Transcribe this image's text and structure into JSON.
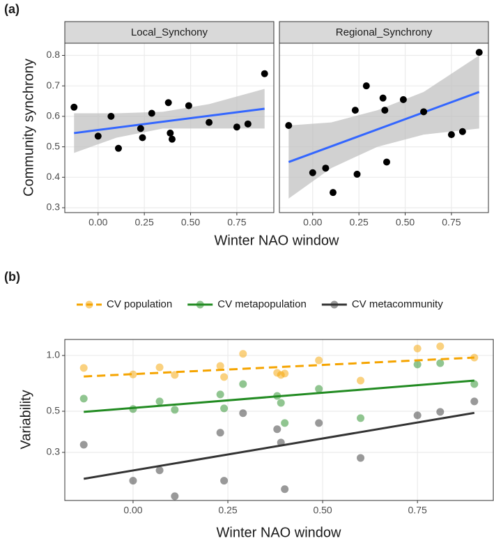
{
  "chart_data": [
    {
      "type": "scatter",
      "label": "(a)",
      "y_label": "Community synchrony",
      "x_label": "Winter NAO window",
      "xlim": [
        -0.18,
        0.95
      ],
      "xticks": [
        {
          "value": 0,
          "label": "0.00"
        },
        {
          "value": 0.25,
          "label": "0.25"
        },
        {
          "value": 0.5,
          "label": "0.50"
        },
        {
          "value": 0.75,
          "label": "0.75"
        }
      ],
      "ylim": [
        0.284,
        0.84
      ],
      "yticks": [
        0.3,
        0.4,
        0.5,
        0.6,
        0.7,
        0.8
      ],
      "grid": true,
      "point_color": "#000000",
      "fit_color": "#3366ff",
      "ribbon_color": "#bebebe",
      "x": [
        -0.13,
        0.0,
        0.07,
        0.11,
        0.23,
        0.24,
        0.29,
        0.38,
        0.39,
        0.4,
        0.49,
        0.6,
        0.75,
        0.81,
        0.9
      ],
      "facets": [
        {
          "title": "Local_Synchony",
          "values": [
            0.63,
            0.535,
            0.6,
            0.495,
            0.56,
            0.53,
            0.61,
            0.645,
            0.545,
            0.525,
            0.635,
            0.58,
            0.565,
            0.575,
            0.74
          ],
          "fit": {
            "x": [
              -0.13,
              0.9
            ],
            "y": [
              0.545,
              0.625
            ]
          },
          "ribbon": {
            "x": [
              -0.13,
              0.1,
              0.35,
              0.6,
              0.9
            ],
            "lower": [
              0.48,
              0.53,
              0.56,
              0.56,
              0.56
            ],
            "upper": [
              0.61,
              0.61,
              0.615,
              0.64,
              0.69
            ]
          }
        },
        {
          "title": "Regional_Synchrony",
          "values": [
            0.57,
            0.415,
            0.43,
            0.35,
            0.62,
            0.41,
            0.7,
            0.66,
            0.62,
            0.45,
            0.655,
            0.615,
            0.54,
            0.55,
            0.81
          ],
          "fit": {
            "x": [
              -0.13,
              0.9
            ],
            "y": [
              0.45,
              0.68
            ]
          },
          "ribbon": {
            "x": [
              -0.13,
              0.1,
              0.35,
              0.6,
              0.9
            ],
            "lower": [
              0.33,
              0.43,
              0.5,
              0.54,
              0.56
            ],
            "upper": [
              0.57,
              0.58,
              0.62,
              0.68,
              0.8
            ]
          }
        }
      ]
    },
    {
      "type": "scatter",
      "label": "(b)",
      "y_label": "Variability",
      "x_label": "Winter NAO window",
      "log_y": true,
      "legend": "top",
      "grid": true,
      "xlim": [
        -0.18,
        0.95
      ],
      "xticks": [
        {
          "value": 0,
          "label": "0.00"
        },
        {
          "value": 0.25,
          "label": "0.25"
        },
        {
          "value": 0.5,
          "label": "0.50"
        },
        {
          "value": 0.75,
          "label": "0.75"
        }
      ],
      "ylim": [
        0.165,
        1.22
      ],
      "yticks": [
        0.3,
        0.5,
        {
          "value": 1,
          "label": "1.0"
        }
      ],
      "x": [
        -0.13,
        0.0,
        0.07,
        0.11,
        0.23,
        0.24,
        0.29,
        0.38,
        0.39,
        0.4,
        0.49,
        0.6,
        0.75,
        0.81,
        0.9
      ],
      "series": [
        {
          "name": "CV population",
          "color": "#f5a400",
          "dash": true,
          "values": [
            0.856,
            0.79,
            0.863,
            0.785,
            0.878,
            0.765,
            1.02,
            0.806,
            0.785,
            0.799,
            0.941,
            0.732,
            1.09,
            1.12,
            0.974
          ],
          "fit": {
            "x": [
              -0.13,
              0.9
            ],
            "y": [
              0.77,
              0.974
            ]
          }
        },
        {
          "name": "CV metapopulation",
          "color": "#228b22",
          "dash": false,
          "values": [
            0.585,
            0.514,
            0.565,
            0.509,
            0.616,
            0.518,
            0.701,
            0.605,
            0.555,
            0.432,
            0.66,
            0.459,
            0.894,
            0.909,
            0.701
          ],
          "fit": {
            "x": [
              -0.13,
              0.9
            ],
            "y": [
              0.496,
              0.732
            ]
          }
        },
        {
          "name": "CV metacommunity",
          "color": "#333333",
          "dash": false,
          "values": [
            0.33,
            0.211,
            0.24,
            0.174,
            0.383,
            0.211,
            0.488,
            0.4,
            0.339,
            0.19,
            0.432,
            0.28,
            0.475,
            0.496,
            0.565
          ],
          "fit": {
            "x": [
              -0.13,
              0.9
            ],
            "y": [
              0.216,
              0.49
            ]
          }
        }
      ]
    }
  ]
}
